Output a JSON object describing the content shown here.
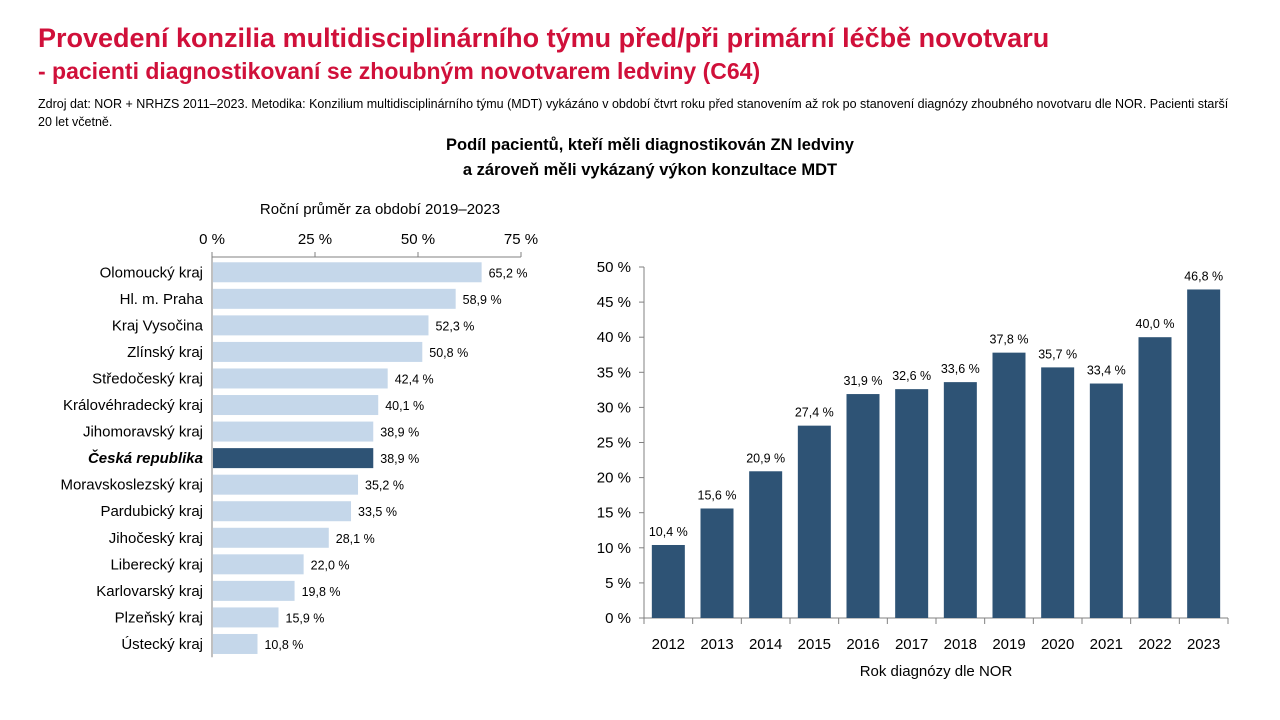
{
  "header": {
    "title": "Provedení konzilia multidisciplinárního týmu před/při primární léčbě novotvaru",
    "subtitle": "- pacienti diagnostikovaní se zhoubným novotvarem ledviny (C64)",
    "source": "Zdroj dat: NOR + NRHZS 2011–2023. Metodika: Konzilium multidisciplinárního týmu (MDT) vykázáno v období čtvrt roku před stanovením až rok po stanovení diagnózy zhoubného novotvaru dle NOR. Pacienti starší 20 let včetně."
  },
  "chart_title_line1": "Podíl pacientů, kteří měli diagnostikován ZN ledviny",
  "chart_title_line2": "a zároveň měli vykázaný výkon konzultace MDT",
  "colors": {
    "title_red": "#d0103a",
    "bar_light": "#c5d7ea",
    "bar_dark": "#2e5375"
  },
  "chart_data": [
    {
      "type": "bar",
      "orientation": "horizontal",
      "title": "Roční průměr za období 2019–2023",
      "categories": [
        "Olomoucký kraj",
        "Hl. m. Praha",
        "Kraj Vysočina",
        "Zlínský kraj",
        "Středočeský kraj",
        "Královéhradecký kraj",
        "Jihomoravský kraj",
        "Česká republika",
        "Moravskoslezský kraj",
        "Pardubický kraj",
        "Jihočeský kraj",
        "Liberecký kraj",
        "Karlovarský kraj",
        "Plzeňský kraj",
        "Ústecký kraj"
      ],
      "values": [
        65.2,
        58.9,
        52.3,
        50.8,
        42.4,
        40.1,
        38.9,
        38.9,
        35.2,
        33.5,
        28.1,
        22.0,
        19.8,
        15.9,
        10.8
      ],
      "value_labels": [
        "65,2 %",
        "58,9 %",
        "52,3 %",
        "50,8 %",
        "42,4 %",
        "40,1 %",
        "38,9 %",
        "38,9 %",
        "35,2 %",
        "33,5 %",
        "28,1 %",
        "22,0 %",
        "19,8 %",
        "15,9 %",
        "10,8 %"
      ],
      "highlight": "Česká republika",
      "xlim": [
        0,
        75
      ],
      "ticks": [
        0,
        25,
        50,
        75
      ],
      "tick_labels": [
        "0 %",
        "25 %",
        "50 %",
        "75 %"
      ],
      "axis_position": "top",
      "grid": false
    },
    {
      "type": "bar",
      "orientation": "vertical",
      "categories": [
        "2012",
        "2013",
        "2014",
        "2015",
        "2016",
        "2017",
        "2018",
        "2019",
        "2020",
        "2021",
        "2022",
        "2023"
      ],
      "values": [
        10.4,
        15.6,
        20.9,
        27.4,
        31.9,
        32.6,
        33.6,
        37.8,
        35.7,
        33.4,
        40.0,
        46.8
      ],
      "value_labels": [
        "10,4 %",
        "15,6 %",
        "20,9 %",
        "27,4 %",
        "31,9 %",
        "32,6 %",
        "33,6 %",
        "37,8 %",
        "35,7 %",
        "33,4 %",
        "40,0 %",
        "46,8 %"
      ],
      "xlabel": "Rok diagnózy dle NOR",
      "ylim": [
        0,
        50
      ],
      "ticks": [
        0,
        5,
        10,
        15,
        20,
        25,
        30,
        35,
        40,
        45,
        50
      ],
      "tick_labels": [
        "0 %",
        "5 %",
        "10 %",
        "15 %",
        "20 %",
        "25 %",
        "30 %",
        "35 %",
        "40 %",
        "45 %",
        "50 %"
      ],
      "grid": false
    }
  ]
}
